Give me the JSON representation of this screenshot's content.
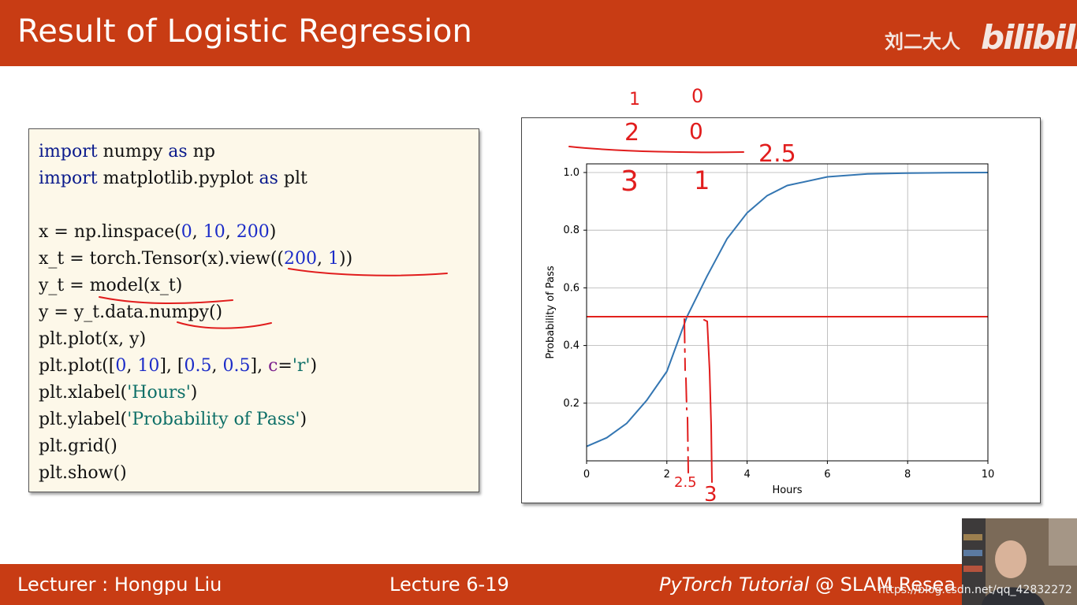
{
  "header": {
    "title": "Result of Logistic Regression",
    "author": "刘二大人",
    "logo": "bilibili"
  },
  "code": {
    "lines": [
      [
        {
          "t": "import",
          "c": "kw"
        },
        {
          "t": " numpy ",
          "c": ""
        },
        {
          "t": "as",
          "c": "kw"
        },
        {
          "t": " np",
          "c": ""
        }
      ],
      [
        {
          "t": "import",
          "c": "kw"
        },
        {
          "t": " matplotlib.pyplot ",
          "c": ""
        },
        {
          "t": "as",
          "c": "kw"
        },
        {
          "t": " plt",
          "c": ""
        }
      ],
      [],
      [
        {
          "t": "x = np.linspace(",
          "c": ""
        },
        {
          "t": "0",
          "c": "num"
        },
        {
          "t": ", ",
          "c": ""
        },
        {
          "t": "10",
          "c": "num"
        },
        {
          "t": ", ",
          "c": ""
        },
        {
          "t": "200",
          "c": "num"
        },
        {
          "t": ")",
          "c": ""
        }
      ],
      [
        {
          "t": "x_t = torch.Tensor(x).view((",
          "c": ""
        },
        {
          "t": "200",
          "c": "num"
        },
        {
          "t": ", ",
          "c": ""
        },
        {
          "t": "1",
          "c": "num"
        },
        {
          "t": "))",
          "c": ""
        }
      ],
      [
        {
          "t": "y_t = model(x_t)",
          "c": ""
        }
      ],
      [
        {
          "t": "y = y_t.data.numpy()",
          "c": ""
        }
      ],
      [
        {
          "t": "plt.plot(x, y)",
          "c": ""
        }
      ],
      [
        {
          "t": "plt.plot([",
          "c": ""
        },
        {
          "t": "0",
          "c": "num"
        },
        {
          "t": ", ",
          "c": ""
        },
        {
          "t": "10",
          "c": "num"
        },
        {
          "t": "], [",
          "c": ""
        },
        {
          "t": "0.5",
          "c": "num"
        },
        {
          "t": ", ",
          "c": ""
        },
        {
          "t": "0.5",
          "c": "num"
        },
        {
          "t": "], ",
          "c": ""
        },
        {
          "t": "c",
          "c": "kwarg"
        },
        {
          "t": "=",
          "c": ""
        },
        {
          "t": "'r'",
          "c": "str"
        },
        {
          "t": ")",
          "c": ""
        }
      ],
      [
        {
          "t": "plt.xlabel(",
          "c": ""
        },
        {
          "t": "'Hours'",
          "c": "str"
        },
        {
          "t": ")",
          "c": ""
        }
      ],
      [
        {
          "t": "plt.ylabel(",
          "c": ""
        },
        {
          "t": "'Probability of Pass'",
          "c": "str"
        },
        {
          "t": ")",
          "c": ""
        }
      ],
      [
        {
          "t": "plt.grid()",
          "c": ""
        }
      ],
      [
        {
          "t": "plt.show()",
          "c": ""
        }
      ]
    ]
  },
  "chart_data": {
    "type": "line",
    "title": "",
    "xlabel": "Hours",
    "ylabel": "Probability of Pass",
    "xlim": [
      0,
      10
    ],
    "ylim": [
      0.0,
      1.03
    ],
    "xticks": [
      0,
      2,
      4,
      6,
      8,
      10
    ],
    "yticks": [
      0.2,
      0.4,
      0.6,
      0.8,
      1.0
    ],
    "grid": true,
    "series": [
      {
        "color": "#3476b2",
        "x": [
          0,
          0.5,
          1,
          1.5,
          2,
          2.5,
          3,
          3.5,
          4,
          4.5,
          5,
          6,
          7,
          8,
          9,
          10
        ],
        "y": [
          0.05,
          0.08,
          0.13,
          0.21,
          0.31,
          0.5,
          0.64,
          0.77,
          0.86,
          0.92,
          0.955,
          0.985,
          0.995,
          0.998,
          0.999,
          1.0
        ]
      },
      {
        "color": "#e2211c",
        "x": [
          0,
          10
        ],
        "y": [
          0.5,
          0.5
        ]
      }
    ],
    "xtick_labels": [
      "0",
      "2",
      "4",
      "6",
      "8",
      "10"
    ],
    "ytick_labels": [
      "0.2",
      "0.4",
      "0.6",
      "0.8",
      "1.0"
    ]
  },
  "annotations": {
    "color": "#e11d1d",
    "table_col1": [
      "1",
      "2",
      "3"
    ],
    "table_col2": [
      "0",
      "0",
      "1"
    ],
    "answer": "2.5",
    "marks": [
      "2.5",
      "3"
    ]
  },
  "footer": {
    "lecturer": "Lecturer : Hongpu Liu",
    "lecture": "Lecture 6-19",
    "tutorial_italic": "PyTorch Tutorial",
    "tutorial_rest": " @ SLAM Resea",
    "watermark": "https://blog.csdn.net/qq_42832272"
  }
}
